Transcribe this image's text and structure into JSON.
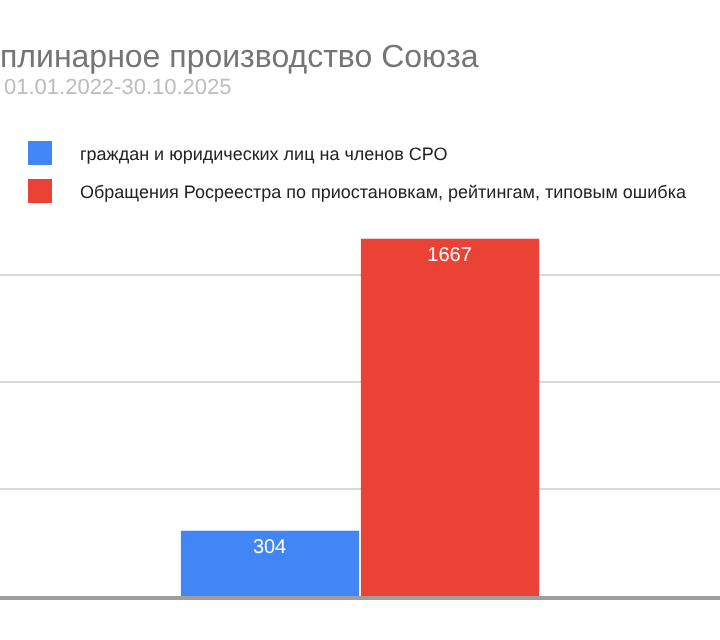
{
  "chart_data": {
    "type": "bar",
    "title": "плинарное производство Союза",
    "subtitle": "01.01.2022-30.10.2025",
    "categories": [
      null
    ],
    "series": [
      {
        "name": "граждан и юридических лиц на членов СРО",
        "color": "#4285f4",
        "values": [
          304
        ]
      },
      {
        "name": "Обращения Росреестра по приостановкам, рейтингам, типовым ошибка",
        "color": "#ea4335",
        "values": [
          1667
        ]
      }
    ],
    "grid": "y",
    "legend": "top left",
    "data_labels": true
  }
}
